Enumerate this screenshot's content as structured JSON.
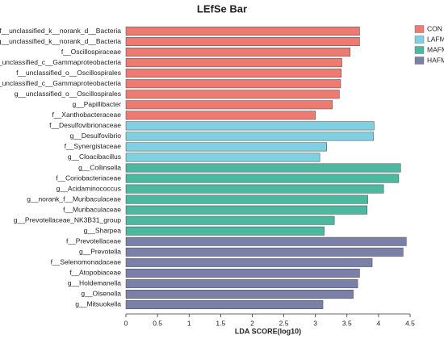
{
  "chart_data": {
    "type": "bar",
    "orientation": "horizontal",
    "title": "LEfSe Bar",
    "x_label": "LDA SCORE(log10)",
    "categories": [
      "f__unclassified_k__norank_d__Bacteria",
      "g__unclassified_k__norank_d__Bacteria",
      "f__Oscillospiraceae",
      "g__unclassified_c__Gammaproteobacteria",
      "f__unclassified_o__Oscillospirales",
      "f__unclassified_c__Gammaproteobacteria",
      "g__unclassified_o__Oscillospirales",
      "g__Papillibacter",
      "f__Xanthobacteraceae",
      "f__Desulfovibrionaceae",
      "g__Desulfovibrio",
      "f__Synergistaceae",
      "g__Cloacibacillus",
      "g__Collinsella",
      "f__Coriobacteriaceae",
      "g__Acidaminococcus",
      "g__norank_f__Muribaculaceae",
      "f__Muribaculaceae",
      "g__Prevotellaceae_NK3B31_group",
      "g__Sharpea",
      "f__Prevotellaceae",
      "g__Prevotella",
      "f__Selenomonadaceae",
      "f__Atopobiaceae",
      "g__Holdemanella",
      "g__Olsenella",
      "g__Mitsuokella"
    ],
    "series": [
      {
        "name": "CON",
        "color": "#ee7b72",
        "values": [
          3.7,
          3.7,
          3.55,
          3.42,
          3.41,
          3.4,
          3.38,
          3.27,
          3.0,
          null,
          null,
          null,
          null,
          null,
          null,
          null,
          null,
          null,
          null,
          null,
          null,
          null,
          null,
          null,
          null,
          null,
          null
        ]
      },
      {
        "name": "LAFM",
        "color": "#7fd0e0",
        "values": [
          null,
          null,
          null,
          null,
          null,
          null,
          null,
          null,
          null,
          3.93,
          3.92,
          3.18,
          3.07,
          null,
          null,
          null,
          null,
          null,
          null,
          null,
          null,
          null,
          null,
          null,
          null,
          null,
          null
        ]
      },
      {
        "name": "MAFM",
        "color": "#4cb8a0",
        "values": [
          null,
          null,
          null,
          null,
          null,
          null,
          null,
          null,
          null,
          null,
          null,
          null,
          null,
          4.35,
          4.32,
          4.08,
          3.83,
          3.82,
          3.3,
          3.14,
          null,
          null,
          null,
          null,
          null,
          null,
          null
        ]
      },
      {
        "name": "HAFM",
        "color": "#7b80a9",
        "values": [
          null,
          null,
          null,
          null,
          null,
          null,
          null,
          null,
          null,
          null,
          null,
          null,
          null,
          null,
          null,
          null,
          null,
          null,
          null,
          null,
          4.44,
          4.39,
          3.9,
          3.7,
          3.67,
          3.6,
          3.12
        ]
      }
    ],
    "xlim": [
      0,
      4.5
    ],
    "xticks": [
      0,
      0.5,
      1,
      1.5,
      2,
      2.5,
      3,
      3.5,
      4,
      4.5
    ],
    "legend": "top-right"
  }
}
